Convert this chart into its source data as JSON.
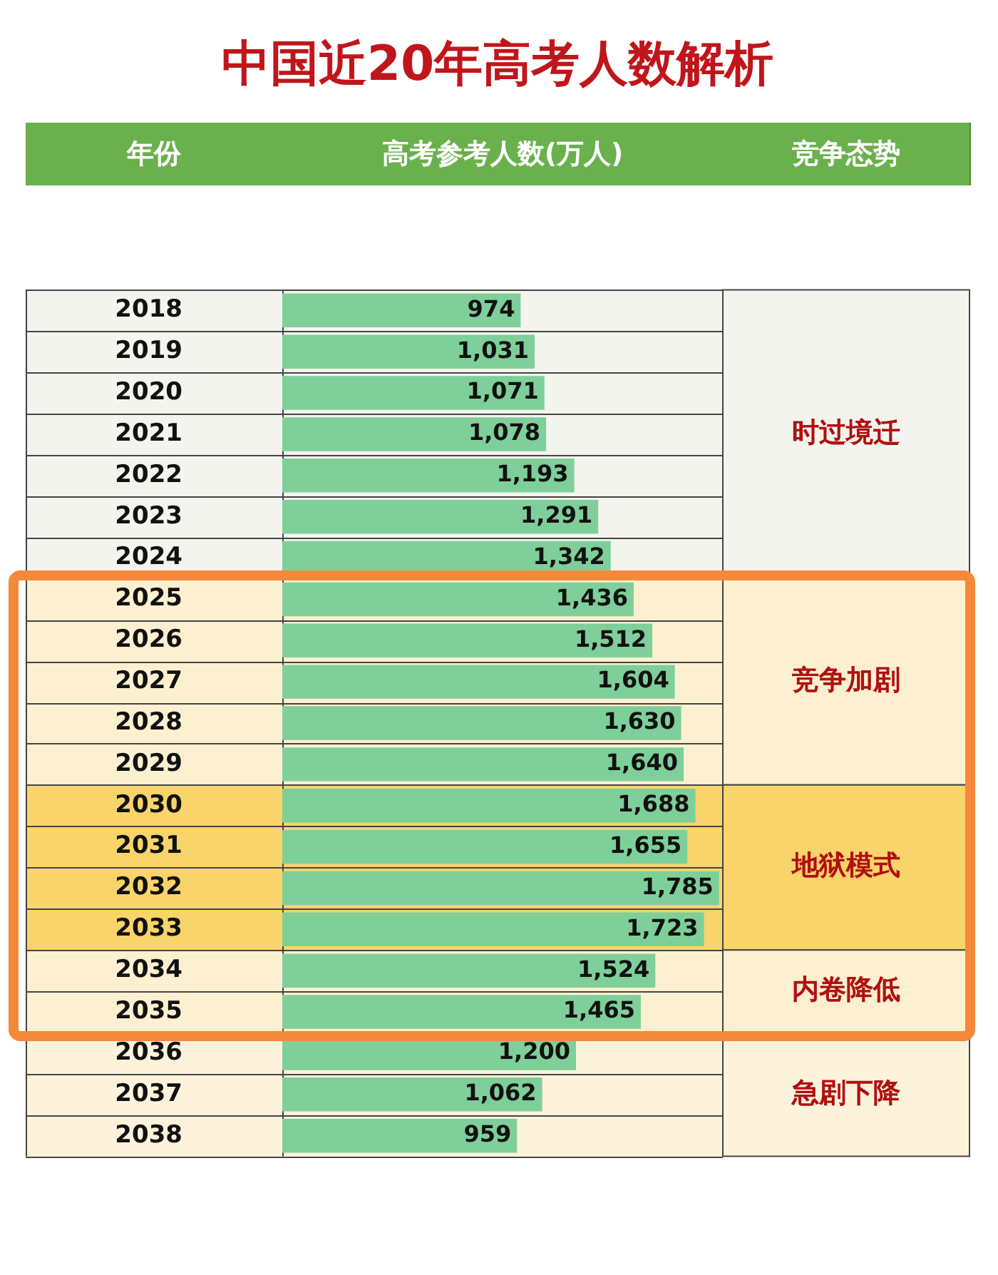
{
  "chart_data": {
    "type": "bar",
    "orientation": "horizontal",
    "title": "中国近20年高考人数解析",
    "ylabel": "年份",
    "xlabel": "高考参考人数(万人)",
    "annotations": [
      "竞争态势"
    ],
    "categories": [
      "2018",
      "2019",
      "2020",
      "2021",
      "2022",
      "2023",
      "2024",
      "2025",
      "2026",
      "2027",
      "2028",
      "2029",
      "2030",
      "2031",
      "2032",
      "2033",
      "2034",
      "2035",
      "2036",
      "2037",
      "2038"
    ],
    "values": [
      974,
      1031,
      1071,
      1078,
      1193,
      1291,
      1342,
      1436,
      1512,
      1604,
      1630,
      1640,
      1688,
      1655,
      1785,
      1723,
      1524,
      1465,
      1200,
      1062,
      959
    ],
    "value_labels": [
      "974",
      "1,031",
      "1,071",
      "1,078",
      "1,193",
      "1,291",
      "1,342",
      "1,436",
      "1,512",
      "1,604",
      "1,630",
      "1,640",
      "1,688",
      "1,655",
      "1,785",
      "1,723",
      "1,524",
      "1,465",
      "1,200",
      "1,062",
      "959"
    ],
    "color": "#7fcf9a",
    "xlim": [
      0,
      1800
    ],
    "tick_labels": "y",
    "grid": "y",
    "legend": false,
    "bands": [
      {
        "axis": "y",
        "from": "2018",
        "to": "2024",
        "label": "时过境迁",
        "color": "#f4f4ee"
      },
      {
        "axis": "y",
        "from": "2025",
        "to": "2029",
        "label": "竞争加剧",
        "color": "#fdf0d0"
      },
      {
        "axis": "y",
        "from": "2030",
        "to": "2033",
        "label": "地狱模式",
        "color": "#f9d46a"
      },
      {
        "axis": "y",
        "from": "2034",
        "to": "2035",
        "label": "内卷降低",
        "color": "#fdf0d0"
      },
      {
        "axis": "y",
        "from": "2036",
        "to": "2038",
        "label": "急剧下降",
        "color": "#fdf3dc"
      }
    ]
  }
}
